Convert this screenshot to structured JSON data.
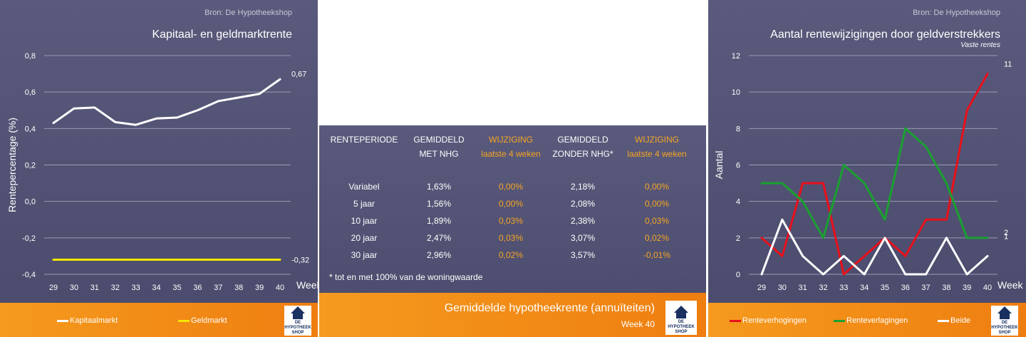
{
  "left_chart": {
    "source": "Bron: De Hypotheekshop",
    "title": "Kapitaal- en geldmarktrente",
    "legend": [
      "Kapitaalmarkt",
      "Geldmarkt"
    ],
    "colors": {
      "kapitaalmarkt": "#ffffff",
      "geldmarkt": "#f5e600"
    }
  },
  "right_chart": {
    "source": "Bron: De Hypotheekshop",
    "title": "Aantal rentewijzigingen door geldverstrekkers",
    "subtitle": "Vaste rentes",
    "legend": [
      "Renteverhogingen",
      "Renteverlagingen",
      "Beide"
    ],
    "colors": {
      "renteverhogingen": "#e8101a",
      "renteverlagingen": "#1aa030",
      "beide": "#ffffff"
    }
  },
  "table": {
    "headers": [
      [
        "RENTEPERIODE",
        ""
      ],
      [
        "GEMIDDELD",
        "MET NHG"
      ],
      [
        "WIJZIGING",
        "laatste 4 weken"
      ],
      [
        "GEMIDDELD",
        "ZONDER NHG*"
      ],
      [
        "WIJZIGING",
        "laatste 4 weken"
      ]
    ],
    "rows": [
      [
        "Variabel",
        "1,63%",
        "0,00%",
        "2,18%",
        "0,00%"
      ],
      [
        "5 jaar",
        "1,56%",
        "0,00%",
        "2,08%",
        "0,00%"
      ],
      [
        "10 jaar",
        "1,89%",
        "0,03%",
        "2,38%",
        "0,03%"
      ],
      [
        "20 jaar",
        "2,47%",
        "0,03%",
        "3,07%",
        "0,02%"
      ],
      [
        "30 jaar",
        "2,96%",
        "0,02%",
        "3,57%",
        "-0,01%"
      ]
    ],
    "note": "* tot en met 100% van de woningwaarde",
    "title": "Gemiddelde hypotheekrente (annuïteiten)",
    "week": "Week 40"
  },
  "logo_text": [
    "DE",
    "HYPOTHEEK",
    "SHOP"
  ],
  "chart_data": [
    {
      "type": "line",
      "title": "Kapitaal- en geldmarktrente",
      "xlabel": "Week",
      "ylabel": "Rentepercentage (%)",
      "x": [
        29,
        30,
        31,
        32,
        33,
        34,
        35,
        36,
        37,
        38,
        39,
        40
      ],
      "ylim": [
        -0.4,
        0.8
      ],
      "yticks": [
        "0,8",
        "0,6",
        "0,4",
        "0,2",
        "0,0",
        "-0,2",
        "-0,4"
      ],
      "grid": true,
      "series": [
        {
          "name": "Kapitaalmarkt",
          "values": [
            0.43,
            0.51,
            0.515,
            0.435,
            0.42,
            0.455,
            0.46,
            0.5,
            0.55,
            0.57,
            0.59,
            0.67
          ],
          "end_label": "0,67"
        },
        {
          "name": "Geldmarkt",
          "values": [
            -0.32,
            -0.32,
            -0.32,
            -0.32,
            -0.32,
            -0.32,
            -0.32,
            -0.32,
            -0.32,
            -0.32,
            -0.32,
            -0.32
          ],
          "end_label": "-0,32"
        }
      ]
    },
    {
      "type": "line",
      "title": "Aantal rentewijzigingen door geldverstrekkers",
      "subtitle": "Vaste rentes",
      "xlabel": "Week",
      "ylabel": "Aantal",
      "x": [
        29,
        30,
        31,
        32,
        33,
        34,
        35,
        36,
        37,
        38,
        39,
        40
      ],
      "ylim": [
        0,
        12
      ],
      "yticks": [
        "12",
        "10",
        "8",
        "6",
        "4",
        "2",
        "0"
      ],
      "grid": true,
      "series": [
        {
          "name": "Renteverhogingen",
          "values": [
            2,
            1,
            5,
            5,
            0,
            1,
            2,
            1,
            3,
            3,
            9,
            11
          ],
          "end_label": "11"
        },
        {
          "name": "Renteverlagingen",
          "values": [
            5,
            5,
            4,
            2,
            6,
            5,
            3,
            8,
            7,
            5,
            2,
            2
          ],
          "end_label": "2"
        },
        {
          "name": "Beide",
          "values": [
            0,
            3,
            1,
            0,
            1,
            0,
            2,
            0,
            0,
            2,
            0,
            1
          ],
          "end_label": "1"
        }
      ]
    }
  ]
}
